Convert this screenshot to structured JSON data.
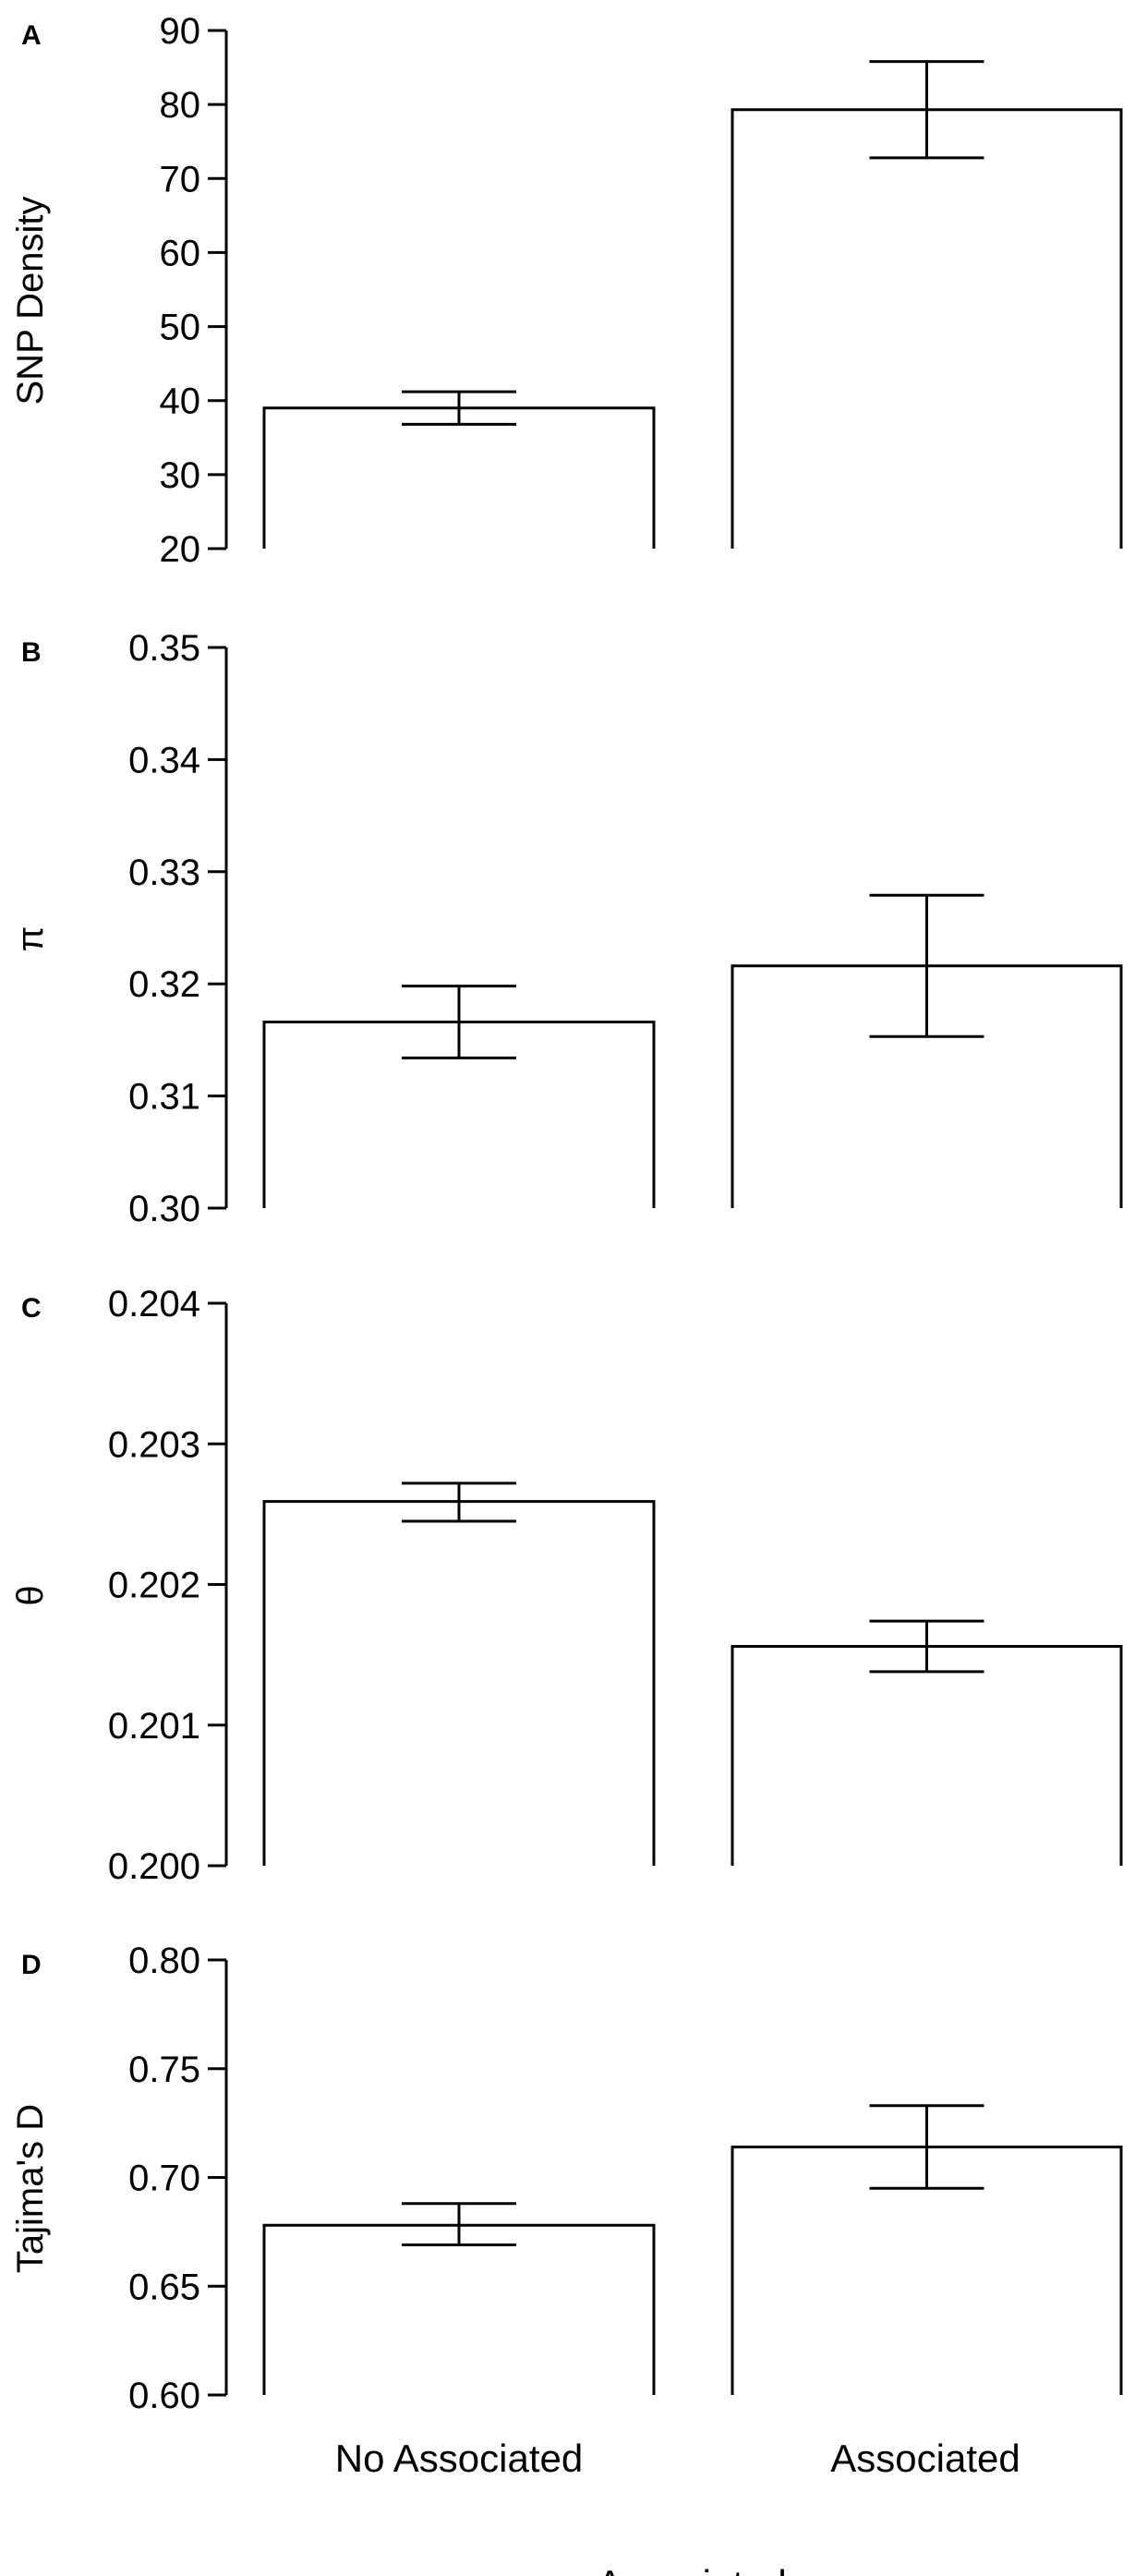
{
  "chart_data": [
    {
      "panel": "A",
      "type": "bar",
      "ylabel": "SNP Density",
      "categories": [
        "No Associated",
        "Associated"
      ],
      "values": [
        39,
        79.3
      ],
      "errors": [
        [
          36.8,
          41.2
        ],
        [
          72.8,
          85.8
        ]
      ],
      "ylim": [
        20,
        90
      ],
      "yticks": [
        "20",
        "30",
        "40",
        "50",
        "60",
        "70",
        "80",
        "90"
      ],
      "grid": false
    },
    {
      "panel": "B",
      "type": "bar",
      "ylabel": "π",
      "categories": [
        "No Associated",
        "Associated"
      ],
      "values": [
        0.3166,
        0.3216
      ],
      "errors": [
        [
          0.3134,
          0.3198
        ],
        [
          0.3153,
          0.3279
        ]
      ],
      "ylim": [
        0.3,
        0.35
      ],
      "yticks": [
        "0.30",
        "0.31",
        "0.32",
        "0.33",
        "0.34",
        "0.35"
      ],
      "grid": false
    },
    {
      "panel": "C",
      "type": "bar",
      "ylabel": "θ",
      "categories": [
        "No Associated",
        "Associated"
      ],
      "values": [
        0.20259,
        0.20156
      ],
      "errors": [
        [
          0.20245,
          0.20272
        ],
        [
          0.20138,
          0.20174
        ]
      ],
      "ylim": [
        0.2,
        0.204
      ],
      "yticks": [
        "0.200",
        "0.201",
        "0.202",
        "0.203",
        "0.204"
      ],
      "grid": false
    },
    {
      "panel": "D",
      "type": "bar",
      "ylabel": "Tajima's D",
      "categories": [
        "No Associated",
        "Associated"
      ],
      "values": [
        0.678,
        0.714
      ],
      "errors": [
        [
          0.669,
          0.688
        ],
        [
          0.695,
          0.733
        ]
      ],
      "ylim": [
        0.6,
        0.8
      ],
      "yticks": [
        "0.60",
        "0.65",
        "0.70",
        "0.75",
        "0.80"
      ],
      "grid": false
    }
  ],
  "x_categories": [
    "No Associated",
    "Associated"
  ],
  "xlabel": "Associated"
}
